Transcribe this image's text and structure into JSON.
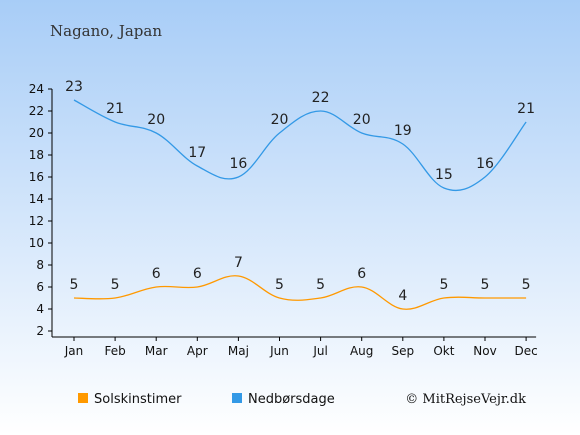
{
  "colors": {
    "bg_top": "#a8cdf7",
    "bg_bottom": "#ffffff",
    "sun": "#ff9900",
    "rain": "#3399e6",
    "axis": "#000000"
  },
  "chart_data": {
    "type": "line",
    "title": "Nagano, Japan",
    "categories": [
      "Jan",
      "Feb",
      "Mar",
      "Apr",
      "Maj",
      "Jun",
      "Jul",
      "Aug",
      "Sep",
      "Okt",
      "Nov",
      "Dec"
    ],
    "series": [
      {
        "name": "Solskinstimer",
        "color": "#ff9900",
        "values": [
          5,
          5,
          6,
          6,
          7,
          5,
          5,
          6,
          4,
          5,
          5,
          5
        ]
      },
      {
        "name": "Nedbørsdage",
        "color": "#3399e6",
        "values": [
          23,
          21,
          20,
          17,
          16,
          20,
          22,
          20,
          19,
          15,
          16,
          21
        ]
      }
    ],
    "ylim": [
      2,
      24
    ],
    "yticks": [
      2,
      4,
      6,
      8,
      10,
      12,
      14,
      16,
      18,
      20,
      22,
      24
    ],
    "grid": false,
    "legend": "bottom-left"
  },
  "footer": {
    "copyright": "© MitRejseVejr.dk"
  }
}
